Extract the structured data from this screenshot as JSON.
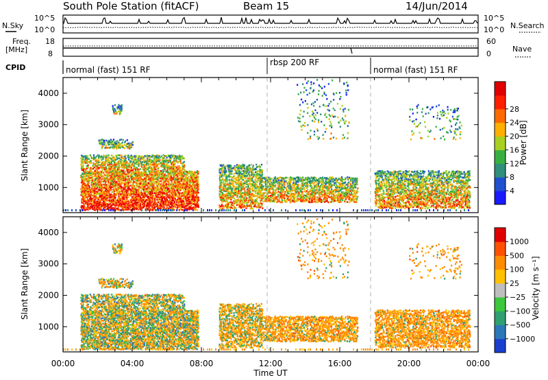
{
  "header": {
    "title": "South Pole Station (fitACF)",
    "beam": "Beam 15",
    "date": "14/Jun/2014"
  },
  "status_panels": {
    "nsky_label": "N.Sky",
    "nsky_ticks": [
      "10^5",
      "10^0"
    ],
    "nsearch_label": "N.Search",
    "nsearch_ticks": [
      "10^5",
      "10^0"
    ],
    "freq_label": "Freq.",
    "freq_unit": "[MHz]",
    "freq_ticks": [
      "18",
      "8"
    ],
    "nave_label": "Nave",
    "nave_ticks": [
      "60",
      "0"
    ],
    "cpid_label": "CPID"
  },
  "cpid_modes": [
    {
      "label": "normal (fast) 151 RF",
      "start_hour": 0,
      "end_hour": 12
    },
    {
      "label": "rbsp 200 RF",
      "start_hour": 12,
      "end_hour": 18
    },
    {
      "label": "normal (fast) 151 RF",
      "start_hour": 18,
      "end_hour": 24
    }
  ],
  "chart_data": [
    {
      "type": "heatmap",
      "name": "power",
      "ylabel": "Slant Range [km]",
      "xlabel": "Time UT",
      "xlim": [
        0,
        24
      ],
      "ylim": [
        200,
        4500
      ],
      "y_ticks": [
        "1000",
        "2000",
        "3000",
        "4000"
      ],
      "x_ticks": [
        "00:00",
        "04:00",
        "08:00",
        "12:00",
        "16:00",
        "20:00",
        "00:00"
      ],
      "colorbar": {
        "label": "Power [dB]",
        "ticks": [
          "4",
          "8",
          "12",
          "16",
          "20",
          "24",
          "28"
        ],
        "colors": [
          "#1a1aff",
          "#2050d0",
          "#2f8f7a",
          "#38b040",
          "#a8d020",
          "#ffb000",
          "#ff6a00",
          "#ff1e00",
          "#e00000"
        ]
      },
      "approx_echo_regions": [
        {
          "t0": 1.0,
          "t1": 7.8,
          "r0": 250,
          "r1": 1500,
          "level": "high"
        },
        {
          "t0": 1.0,
          "t1": 7.0,
          "r0": 1500,
          "r1": 2000,
          "level": "mid"
        },
        {
          "t0": 2.0,
          "t1": 4.0,
          "r0": 2200,
          "r1": 2500,
          "level": "low"
        },
        {
          "t0": 2.8,
          "t1": 3.4,
          "r0": 3300,
          "r1": 3600,
          "level": "low"
        },
        {
          "t0": 9.0,
          "t1": 11.5,
          "r0": 300,
          "r1": 1700,
          "level": "mid"
        },
        {
          "t0": 11.5,
          "t1": 17.0,
          "r0": 500,
          "r1": 1300,
          "level": "mid"
        },
        {
          "t0": 13.5,
          "t1": 16.5,
          "r0": 2500,
          "r1": 4400,
          "level": "sparse"
        },
        {
          "t0": 18.0,
          "t1": 23.5,
          "r0": 300,
          "r1": 1500,
          "level": "mid"
        },
        {
          "t0": 20.0,
          "t1": 23.0,
          "r0": 2500,
          "r1": 3600,
          "level": "sparse"
        }
      ]
    },
    {
      "type": "heatmap",
      "name": "velocity",
      "ylabel": "Slant Range [km]",
      "xlabel": "Time UT",
      "xlim": [
        0,
        24
      ],
      "ylim": [
        200,
        4500
      ],
      "y_ticks": [
        "1000",
        "2000",
        "3000",
        "4000"
      ],
      "x_ticks": [
        "00:00",
        "04:00",
        "08:00",
        "12:00",
        "16:00",
        "20:00",
        "00:00"
      ],
      "colorbar": {
        "label": "Velocity [m s⁻¹]",
        "ticks": [
          "1000",
          "500",
          "100",
          "25",
          "−25",
          "−100",
          "−500",
          "−1000"
        ],
        "colors": [
          "#1a3fd0",
          "#2b78b8",
          "#2fa070",
          "#3cc83c",
          "#bebebe",
          "#ffc000",
          "#ff8c00",
          "#ff5000",
          "#e00000"
        ]
      }
    }
  ]
}
